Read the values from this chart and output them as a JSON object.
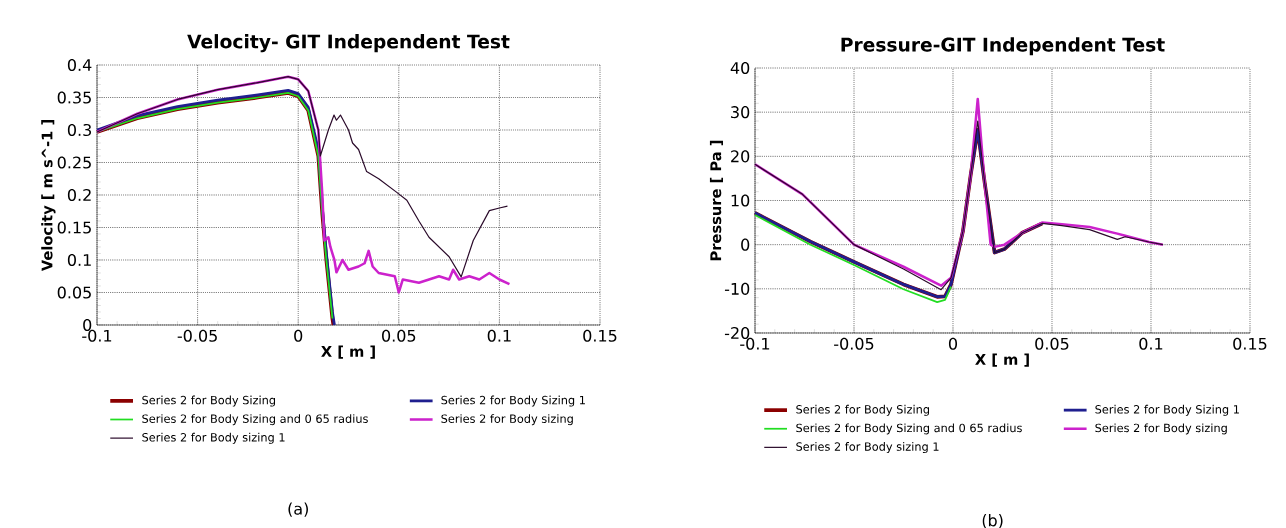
{
  "chart_data": [
    {
      "type": "line",
      "title": "Velocity- GIT Independent Test",
      "xlabel": "X [ m ]",
      "ylabel": "Velocity [ m s^-1 ]",
      "xlim": [
        -0.1,
        0.15
      ],
      "ylim": [
        0,
        0.4
      ],
      "xticks": [
        -0.1,
        -0.05,
        0,
        0.05,
        0.1,
        0.15
      ],
      "yticks": [
        0,
        0.05,
        0.1,
        0.15,
        0.2,
        0.25,
        0.3,
        0.35,
        0.4
      ],
      "grid": true,
      "legend": "bottom",
      "marker": "none",
      "annotations": [
        "(a)"
      ],
      "series": [
        {
          "name": "Series 2 for Body Sizing",
          "color": "#8b0000",
          "x": [
            -0.1,
            -0.08,
            -0.06,
            -0.04,
            -0.02,
            -0.005,
            0,
            0.005,
            0.01,
            0.012,
            0.014,
            0.016,
            0.017,
            0.0175
          ],
          "values": [
            0.297,
            0.318,
            0.332,
            0.342,
            0.35,
            0.357,
            0.352,
            0.33,
            0.26,
            0.17,
            0.1,
            0.04,
            0.01,
            0
          ]
        },
        {
          "name": "Series 2 for Body Sizing 1",
          "color": "#1f1f8f",
          "x": [
            -0.1,
            -0.08,
            -0.06,
            -0.04,
            -0.02,
            -0.005,
            0,
            0.005,
            0.01,
            0.012,
            0.014,
            0.016,
            0.017,
            0.018
          ],
          "values": [
            0.3,
            0.322,
            0.336,
            0.346,
            0.354,
            0.361,
            0.356,
            0.335,
            0.27,
            0.18,
            0.11,
            0.05,
            0.02,
            0
          ]
        },
        {
          "name": "Series 2 for Body Sizing and 0 65 radius",
          "color": "#22dd22",
          "x": [
            -0.1,
            -0.08,
            -0.06,
            -0.04,
            -0.02,
            -0.005,
            0,
            0.005,
            0.01,
            0.012,
            0.014,
            0.016,
            0.017
          ],
          "values": [
            0.297,
            0.318,
            0.332,
            0.342,
            0.35,
            0.357,
            0.352,
            0.33,
            0.26,
            0.17,
            0.1,
            0.04,
            0.01
          ]
        },
        {
          "name": "Series 2 for Body sizing",
          "color": "#cc22cc",
          "x": [
            -0.1,
            -0.08,
            -0.06,
            -0.04,
            -0.02,
            -0.005,
            0,
            0.005,
            0.01,
            0.012,
            0.013,
            0.015,
            0.016,
            0.018,
            0.019,
            0.022,
            0.025,
            0.03,
            0.033,
            0.035,
            0.037,
            0.04,
            0.048,
            0.05,
            0.052,
            0.06,
            0.065,
            0.07,
            0.075,
            0.077,
            0.08,
            0.085,
            0.09,
            0.095,
            0.1,
            0.105
          ],
          "values": [
            0.297,
            0.325,
            0.347,
            0.362,
            0.373,
            0.382,
            0.378,
            0.36,
            0.3,
            0.2,
            0.13,
            0.135,
            0.12,
            0.1,
            0.081,
            0.1,
            0.085,
            0.09,
            0.095,
            0.114,
            0.09,
            0.08,
            0.075,
            0.05,
            0.07,
            0.065,
            0.07,
            0.075,
            0.07,
            0.085,
            0.07,
            0.075,
            0.07,
            0.08,
            0.07,
            0.063
          ]
        },
        {
          "name": "Series 2 for Body sizing 1",
          "color": "#2a0a2a",
          "x": [
            -0.1,
            -0.08,
            -0.06,
            -0.04,
            -0.02,
            -0.005,
            0,
            0.005,
            0.01,
            0.011,
            0.015,
            0.0178,
            0.019,
            0.021,
            0.025,
            0.027,
            0.03,
            0.034,
            0.04,
            0.049,
            0.054,
            0.06,
            0.065,
            0.07,
            0.075,
            0.081,
            0.087,
            0.095,
            0.1,
            0.104
          ],
          "values": [
            0.297,
            0.325,
            0.347,
            0.362,
            0.373,
            0.382,
            0.378,
            0.36,
            0.3,
            0.26,
            0.3,
            0.323,
            0.315,
            0.323,
            0.3,
            0.28,
            0.27,
            0.236,
            0.225,
            0.204,
            0.192,
            0.16,
            0.135,
            0.12,
            0.105,
            0.074,
            0.13,
            0.176,
            0.18,
            0.183
          ]
        }
      ]
    },
    {
      "type": "line",
      "title": "Pressure-GIT Independent Test",
      "xlabel": "X [ m ]",
      "ylabel": "Pressure [ Pa ]",
      "xlim": [
        -0.1,
        0.15
      ],
      "ylim": [
        -20,
        40
      ],
      "xticks": [
        -0.1,
        -0.05,
        0,
        0.05,
        0.1,
        0.15
      ],
      "yticks": [
        -20,
        -10,
        0,
        10,
        20,
        30,
        40
      ],
      "grid": true,
      "legend": "bottom",
      "marker": "none",
      "annotations": [
        "(b)"
      ],
      "series": [
        {
          "name": "Series 2 for Body Sizing",
          "color": "#8b0000",
          "x": [
            -0.1,
            -0.072,
            -0.05,
            -0.025,
            -0.008,
            -0.004,
            -0.001,
            0.005,
            0.009,
            0.0125,
            0.016,
            0.021,
            0.026,
            0.035,
            0.045
          ],
          "values": [
            7.2,
            0.7,
            -3.9,
            -9,
            -11.8,
            -11.7,
            -9,
            3,
            16,
            26,
            14,
            -1.8,
            -1,
            2.7,
            4.8
          ]
        },
        {
          "name": "Series 2 for Body Sizing 1",
          "color": "#1f1f8f",
          "x": [
            -0.1,
            -0.072,
            -0.05,
            -0.025,
            -0.008,
            -0.004,
            -0.001,
            0.005,
            0.009,
            0.0125,
            0.016,
            0.021,
            0.026,
            0.035,
            0.045
          ],
          "values": [
            7.2,
            0.7,
            -3.9,
            -9,
            -11.8,
            -11.7,
            -9,
            3,
            16,
            26,
            14,
            -1.8,
            -1,
            2.7,
            4.8
          ]
        },
        {
          "name": "Series 2 for Body Sizing and 0 65 radius",
          "color": "#22dd22",
          "x": [
            -0.1,
            -0.072,
            -0.05,
            -0.025,
            -0.008,
            -0.004,
            -0.001
          ],
          "values": [
            6.7,
            0,
            -4.6,
            -10.1,
            -13,
            -12.5,
            -9.5
          ]
        },
        {
          "name": "Series 2 for Body sizing",
          "color": "#cc22cc",
          "x": [
            -0.1,
            -0.076,
            -0.05,
            -0.025,
            -0.006,
            -0.001,
            0.005,
            0.009,
            0.0125,
            0.016,
            0.019,
            0.021,
            0.026,
            0.035,
            0.045,
            0.055,
            0.069,
            0.083,
            0.087,
            0.099,
            0.106
          ],
          "values": [
            18.2,
            11.4,
            0,
            -5,
            -9.3,
            -7.5,
            3,
            16,
            33,
            14,
            0,
            -0.5,
            0,
            2.7,
            5,
            4.6,
            4,
            2.5,
            2,
            0.6,
            0
          ]
        },
        {
          "name": "Series 2 for Body sizing 1",
          "color": "#2a0a2a",
          "x": [
            -0.1,
            -0.076,
            -0.05,
            -0.025,
            -0.006,
            -0.001,
            0.005,
            0.009,
            0.0125,
            0.016,
            0.021,
            0.026,
            0.035,
            0.045,
            0.055,
            0.069,
            0.083,
            0.087,
            0.099,
            0.106
          ],
          "values": [
            18.2,
            11.4,
            0,
            -5.5,
            -10.2,
            -7.5,
            3,
            16,
            28,
            14,
            -1.8,
            -1,
            2.7,
            4.8,
            4.3,
            3.4,
            1.2,
            1.8,
            0.6,
            0
          ]
        }
      ]
    }
  ]
}
